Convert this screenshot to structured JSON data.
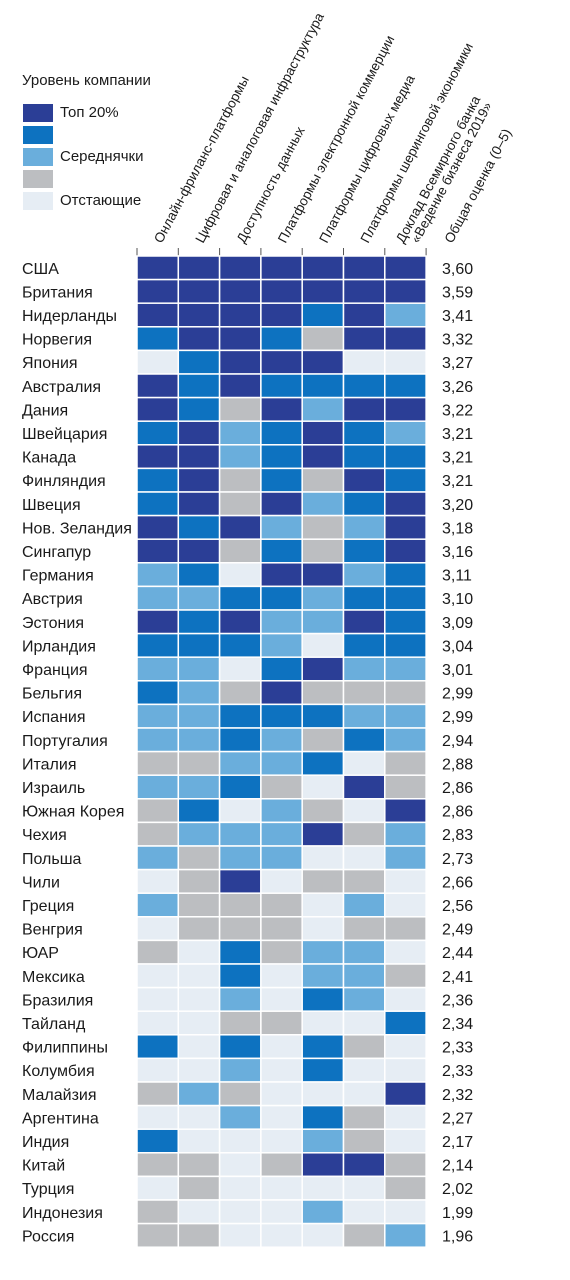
{
  "chart_data": {
    "type": "heatmap",
    "legend": {
      "title": "Уровень компании",
      "levels": [
        {
          "key": 4,
          "label": "Топ 20%",
          "color": "#2b3e96"
        },
        {
          "key": 3,
          "label": "",
          "color": "#0d72c0"
        },
        {
          "key": 2,
          "label": "Середнячки",
          "color": "#6aaedc"
        },
        {
          "key": 1,
          "label": "",
          "color": "#bcbec1"
        },
        {
          "key": 0,
          "label": "Отстающие",
          "color": "#e6edf4"
        }
      ]
    },
    "columns": [
      {
        "label": "Онлайн-фриланс-платформы"
      },
      {
        "label": "Цифровая и аналоговая инфраструктура"
      },
      {
        "label": "Доступность данных"
      },
      {
        "label": "Платформы электронной коммерции"
      },
      {
        "label": "Платформы цифровых медиа"
      },
      {
        "label": "Платформы шеринговой экономики"
      },
      {
        "label": "Доклад Всемирного банка",
        "label2": "«Ведение бизнеса 2019»"
      }
    ],
    "score_label": "Общая оценка (0–5)",
    "rows": [
      {
        "country": "США",
        "score": "3,60",
        "levels": [
          4,
          4,
          4,
          4,
          4,
          4,
          4
        ]
      },
      {
        "country": "Британия",
        "score": "3,59",
        "levels": [
          4,
          4,
          4,
          4,
          4,
          4,
          4
        ]
      },
      {
        "country": "Нидерланды",
        "score": "3,41",
        "levels": [
          4,
          4,
          4,
          4,
          3,
          4,
          2
        ]
      },
      {
        "country": "Норвегия",
        "score": "3,32",
        "levels": [
          3,
          4,
          4,
          3,
          1,
          4,
          4
        ]
      },
      {
        "country": "Япония",
        "score": "3,27",
        "levels": [
          0,
          3,
          4,
          4,
          4,
          0,
          0
        ]
      },
      {
        "country": "Австралия",
        "score": "3,26",
        "levels": [
          4,
          3,
          4,
          3,
          3,
          3,
          3
        ]
      },
      {
        "country": "Дания",
        "score": "3,22",
        "levels": [
          4,
          3,
          1,
          4,
          2,
          4,
          4
        ]
      },
      {
        "country": "Швейцария",
        "score": "3,21",
        "levels": [
          3,
          4,
          2,
          3,
          4,
          3,
          2
        ]
      },
      {
        "country": "Канада",
        "score": "3,21",
        "levels": [
          4,
          4,
          2,
          3,
          4,
          3,
          3
        ]
      },
      {
        "country": "Финляндия",
        "score": "3,21",
        "levels": [
          3,
          4,
          1,
          3,
          1,
          4,
          3
        ]
      },
      {
        "country": "Швеция",
        "score": "3,20",
        "levels": [
          3,
          4,
          1,
          4,
          2,
          3,
          4
        ]
      },
      {
        "country": "Нов. Зеландия",
        "score": "3,18",
        "levels": [
          4,
          3,
          4,
          2,
          1,
          2,
          4
        ]
      },
      {
        "country": "Сингапур",
        "score": "3,16",
        "levels": [
          4,
          4,
          1,
          3,
          1,
          3,
          4
        ]
      },
      {
        "country": "Германия",
        "score": "3,11",
        "levels": [
          2,
          3,
          0,
          4,
          4,
          2,
          3
        ]
      },
      {
        "country": "Австрия",
        "score": "3,10",
        "levels": [
          2,
          2,
          3,
          3,
          2,
          3,
          3
        ]
      },
      {
        "country": "Эстония",
        "score": "3,09",
        "levels": [
          4,
          3,
          4,
          2,
          2,
          4,
          3
        ]
      },
      {
        "country": "Ирландия",
        "score": "3,04",
        "levels": [
          3,
          3,
          3,
          2,
          0,
          3,
          3
        ]
      },
      {
        "country": "Франция",
        "score": "3,01",
        "levels": [
          2,
          2,
          0,
          3,
          4,
          2,
          2
        ]
      },
      {
        "country": "Бельгия",
        "score": "2,99",
        "levels": [
          3,
          2,
          1,
          4,
          1,
          1,
          1
        ]
      },
      {
        "country": "Испания",
        "score": "2,99",
        "levels": [
          2,
          2,
          3,
          3,
          3,
          2,
          2
        ]
      },
      {
        "country": "Португалия",
        "score": "2,94",
        "levels": [
          2,
          2,
          3,
          2,
          1,
          3,
          2
        ]
      },
      {
        "country": "Италия",
        "score": "2,88",
        "levels": [
          1,
          1,
          2,
          2,
          3,
          0,
          1
        ]
      },
      {
        "country": "Израиль",
        "score": "2,86",
        "levels": [
          2,
          2,
          3,
          1,
          0,
          4,
          1
        ]
      },
      {
        "country": "Южная Корея",
        "score": "2,86",
        "levels": [
          1,
          3,
          0,
          2,
          1,
          0,
          4
        ]
      },
      {
        "country": "Чехия",
        "score": "2,83",
        "levels": [
          1,
          2,
          2,
          2,
          4,
          1,
          2
        ]
      },
      {
        "country": "Польша",
        "score": "2,73",
        "levels": [
          2,
          1,
          2,
          2,
          0,
          0,
          2
        ]
      },
      {
        "country": "Чили",
        "score": "2,66",
        "levels": [
          0,
          1,
          4,
          0,
          1,
          1,
          0
        ]
      },
      {
        "country": "Греция",
        "score": "2,56",
        "levels": [
          2,
          1,
          1,
          1,
          0,
          2,
          0
        ]
      },
      {
        "country": "Венгрия",
        "score": "2,49",
        "levels": [
          0,
          1,
          1,
          1,
          0,
          1,
          1
        ]
      },
      {
        "country": "ЮАР",
        "score": "2,44",
        "levels": [
          1,
          0,
          3,
          1,
          2,
          2,
          0
        ]
      },
      {
        "country": "Мексика",
        "score": "2,41",
        "levels": [
          0,
          0,
          3,
          0,
          2,
          2,
          1
        ]
      },
      {
        "country": "Бразилия",
        "score": "2,36",
        "levels": [
          0,
          0,
          2,
          0,
          3,
          2,
          0
        ]
      },
      {
        "country": "Тайланд",
        "score": "2,34",
        "levels": [
          0,
          0,
          1,
          1,
          0,
          0,
          3
        ]
      },
      {
        "country": "Филиппины",
        "score": "2,33",
        "levels": [
          3,
          0,
          3,
          0,
          3,
          1,
          0
        ]
      },
      {
        "country": "Колумбия",
        "score": "2,33",
        "levels": [
          0,
          0,
          2,
          0,
          3,
          0,
          0
        ]
      },
      {
        "country": "Малайзия",
        "score": "2,32",
        "levels": [
          1,
          2,
          1,
          0,
          0,
          0,
          4
        ]
      },
      {
        "country": "Аргентина",
        "score": "2,27",
        "levels": [
          0,
          0,
          2,
          0,
          3,
          1,
          0
        ]
      },
      {
        "country": "Индия",
        "score": "2,17",
        "levels": [
          3,
          0,
          0,
          0,
          2,
          1,
          0
        ]
      },
      {
        "country": "Китай",
        "score": "2,14",
        "levels": [
          1,
          1,
          0,
          1,
          4,
          4,
          1
        ]
      },
      {
        "country": "Турция",
        "score": "2,02",
        "levels": [
          0,
          1,
          0,
          0,
          0,
          0,
          1
        ]
      },
      {
        "country": "Индонезия",
        "score": "1,99",
        "levels": [
          1,
          0,
          0,
          0,
          2,
          0,
          0
        ]
      },
      {
        "country": "Россия",
        "score": "1,96",
        "levels": [
          1,
          1,
          0,
          0,
          0,
          1,
          2
        ]
      }
    ]
  }
}
